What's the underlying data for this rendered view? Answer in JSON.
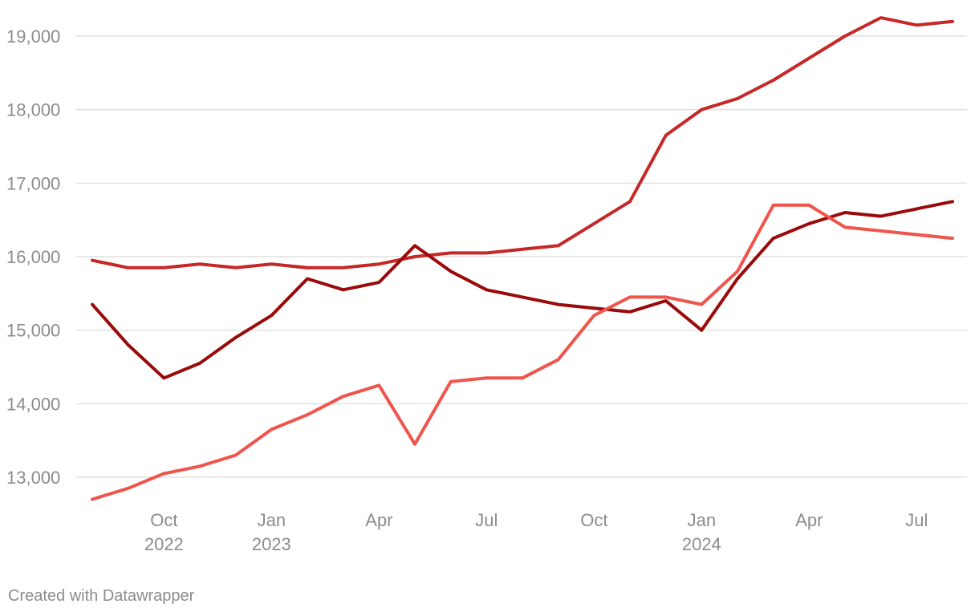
{
  "chart_data": {
    "type": "line",
    "x": [
      "2022-08",
      "2022-09",
      "2022-10",
      "2022-11",
      "2022-12",
      "2023-01",
      "2023-02",
      "2023-03",
      "2023-04",
      "2023-05",
      "2023-06",
      "2023-07",
      "2023-08",
      "2023-09",
      "2023-10",
      "2023-11",
      "2023-12",
      "2024-01",
      "2024-02",
      "2024-03",
      "2024-04",
      "2024-05",
      "2024-06",
      "2024-07",
      "2024-08"
    ],
    "ylim": [
      12700,
      19300
    ],
    "yticks": [
      13000,
      14000,
      15000,
      16000,
      17000,
      18000,
      19000
    ],
    "ytick_labels": [
      "13,000",
      "14,000",
      "15,000",
      "16,000",
      "17,000",
      "18,000",
      "19,000"
    ],
    "xticks": [
      {
        "x": "2022-10",
        "label": "Oct",
        "year": "2022"
      },
      {
        "x": "2023-01",
        "label": "Jan",
        "year": "2023"
      },
      {
        "x": "2023-04",
        "label": "Apr",
        "year": ""
      },
      {
        "x": "2023-07",
        "label": "Jul",
        "year": ""
      },
      {
        "x": "2023-10",
        "label": "Oct",
        "year": ""
      },
      {
        "x": "2024-01",
        "label": "Jan",
        "year": "2024"
      },
      {
        "x": "2024-04",
        "label": "Apr",
        "year": ""
      },
      {
        "x": "2024-07",
        "label": "Jul",
        "year": ""
      }
    ],
    "grid": true,
    "legend": "none",
    "series": [
      {
        "color": "#c62828",
        "values": [
          15950,
          15850,
          15850,
          15900,
          15850,
          15900,
          15850,
          15850,
          15900,
          16000,
          16050,
          16050,
          16100,
          16150,
          16450,
          16750,
          17650,
          18000,
          18150,
          18400,
          18700,
          19000,
          19250,
          19150,
          19200
        ]
      },
      {
        "color": "#9b0a0a",
        "values": [
          15350,
          14800,
          14350,
          14550,
          14900,
          15200,
          15700,
          15550,
          15650,
          16150,
          15800,
          15550,
          15450,
          15350,
          15300,
          15250,
          15400,
          15000,
          15700,
          16250,
          16450,
          16600,
          16550,
          16650,
          16750
        ]
      },
      {
        "color": "#f0544a",
        "values": [
          12700,
          12850,
          13050,
          13150,
          13300,
          13650,
          13850,
          14100,
          14250,
          13450,
          14300,
          14350,
          14350,
          14600,
          15200,
          15450,
          15450,
          15350,
          15800,
          16700,
          16700,
          16400,
          16350,
          16300,
          16250
        ]
      }
    ]
  },
  "footer": {
    "credit": "Created with Datawrapper"
  }
}
